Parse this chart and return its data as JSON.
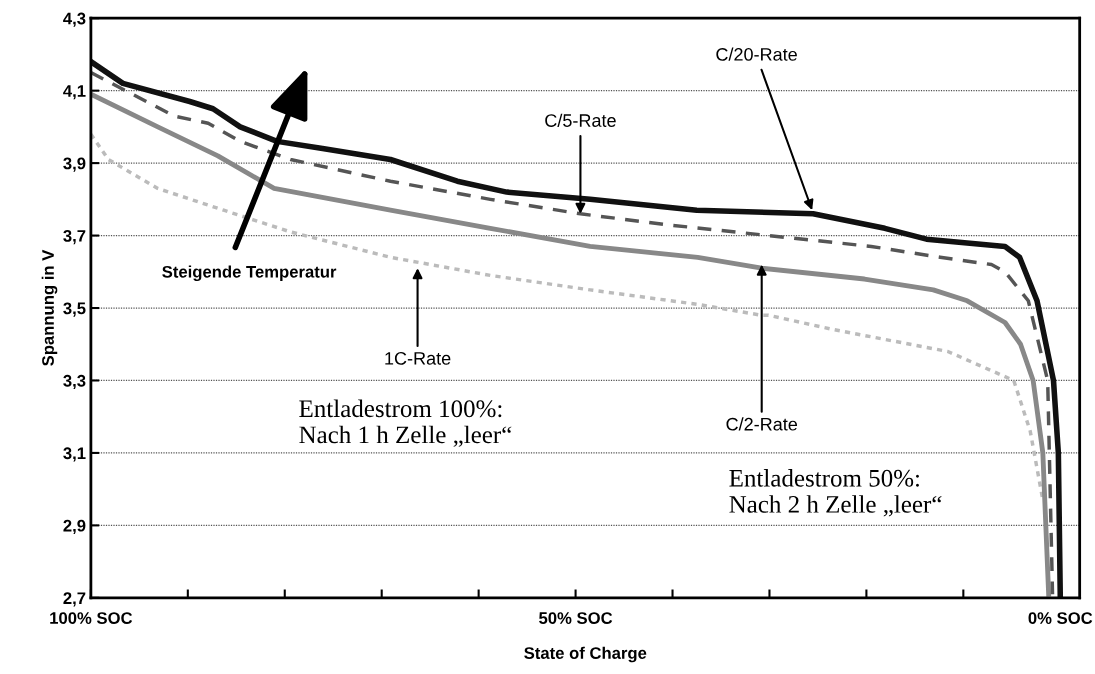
{
  "chart_data": {
    "type": "line",
    "xlabel": "State of Charge",
    "ylabel": "Spannung in V",
    "xlim": [
      100,
      -2
    ],
    "ylim": [
      2.7,
      4.3
    ],
    "xticks": [
      {
        "value": 100,
        "label": "100% SOC"
      },
      {
        "value": 90,
        "label": null
      },
      {
        "value": 80,
        "label": null
      },
      {
        "value": 70,
        "label": null
      },
      {
        "value": 60,
        "label": null
      },
      {
        "value": 50,
        "label": "50% SOC"
      },
      {
        "value": 40,
        "label": null
      },
      {
        "value": 30,
        "label": null
      },
      {
        "value": 20,
        "label": null
      },
      {
        "value": 10,
        "label": null
      },
      {
        "value": 0,
        "label": "0% SOC"
      }
    ],
    "yticks": [
      {
        "value": 2.7,
        "label": "2,7"
      },
      {
        "value": 2.9,
        "label": "2,9"
      },
      {
        "value": 3.1,
        "label": "3,1"
      },
      {
        "value": 3.3,
        "label": "3,3"
      },
      {
        "value": 3.5,
        "label": "3,5"
      },
      {
        "value": 3.7,
        "label": "3,7"
      },
      {
        "value": 3.9,
        "label": "3,9"
      },
      {
        "value": 4.1,
        "label": "4,1"
      },
      {
        "value": 4.3,
        "label": "4,3"
      }
    ],
    "grid": "y",
    "legend": false,
    "series": [
      {
        "color": "#bbbbbb",
        "line_style": "dotted",
        "x": [
          100,
          98.2,
          93.1,
          86.3,
          79.4,
          69.1,
          58.8,
          48.5,
          37.4,
          30.8,
          30.1,
          23.3,
          11.6,
          4.8,
          3.1,
          1.8
        ],
        "values": [
          3.98,
          3.91,
          3.83,
          3.77,
          3.71,
          3.64,
          3.59,
          3.55,
          3.51,
          3.48,
          3.48,
          3.44,
          3.38,
          3.3,
          3.16,
          2.97
        ]
      },
      {
        "color": "#888888",
        "line_style": "solid",
        "x": [
          100,
          93.1,
          86.9,
          81.1,
          69.1,
          58.8,
          48.5,
          37.4,
          30.8,
          20.2,
          13.1,
          9.6,
          5.7,
          4.1,
          2.8,
          1.8,
          1.2
        ],
        "values": [
          4.09,
          4.0,
          3.92,
          3.83,
          3.77,
          3.72,
          3.67,
          3.64,
          3.61,
          3.58,
          3.55,
          3.52,
          3.46,
          3.4,
          3.3,
          3.1,
          2.71
        ]
      },
      {
        "color": "#555555",
        "line_style": "dashed",
        "x": [
          100,
          91.4,
          87.9,
          84.6,
          79.4,
          69.1,
          58.8,
          49.5,
          40.6,
          30.1,
          19.5,
          12.4,
          7.1,
          5.7,
          3.3,
          1.3,
          0.8
        ],
        "values": [
          4.15,
          4.03,
          4.01,
          3.96,
          3.91,
          3.85,
          3.8,
          3.76,
          3.73,
          3.7,
          3.67,
          3.64,
          3.62,
          3.6,
          3.52,
          3.3,
          2.71
        ]
      },
      {
        "color": "#111111",
        "line_style": "solid",
        "x": [
          100,
          96.7,
          89.8,
          87.4,
          84.6,
          80.8,
          76.1,
          69.1,
          62.2,
          57.1,
          48.5,
          37.5,
          25.5,
          18.1,
          13.8,
          5.7,
          4.2,
          2.4,
          0.7,
          0.2,
          0
        ],
        "values": [
          4.18,
          4.12,
          4.07,
          4.05,
          4.0,
          3.96,
          3.94,
          3.91,
          3.85,
          3.82,
          3.8,
          3.77,
          3.76,
          3.72,
          3.69,
          3.67,
          3.64,
          3.52,
          3.3,
          3.1,
          2.7
        ]
      }
    ],
    "annotations": [
      {
        "text": "C/5-Rate",
        "x": 49.5,
        "y": 3.76
      },
      {
        "text": "C/20-Rate",
        "x": 25.6,
        "y": 3.77
      },
      {
        "text": "1C-Rate",
        "x": 66.3,
        "y": 3.61
      },
      {
        "text": "C/2-Rate",
        "x": 30.8,
        "y": 3.62
      },
      "Steigende Temperatur",
      "Entladestrom 100%:\nNach 1 h Zelle „leer“",
      "Entladestrom 50%:\nNach 2 h Zelle „leer“"
    ]
  }
}
